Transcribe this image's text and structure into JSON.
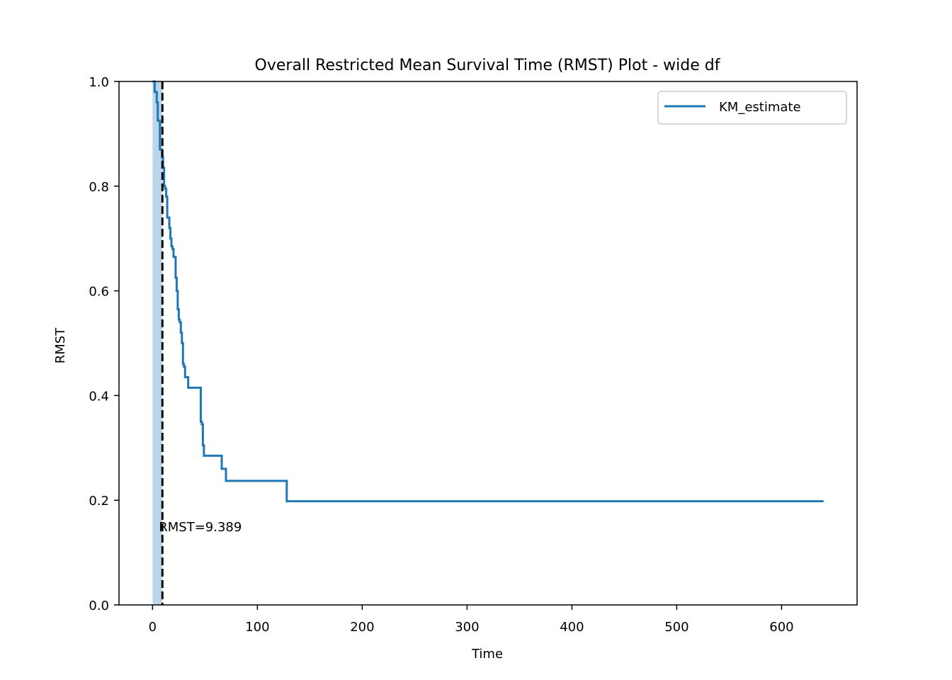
{
  "chart_data": {
    "type": "line",
    "title": "Overall Restricted Mean Survival Time (RMST) Plot - wide df",
    "xlabel": "Time",
    "ylabel": "RMST",
    "xlim": [
      -32,
      672
    ],
    "ylim": [
      0.0,
      1.0
    ],
    "x_ticks": [
      0,
      100,
      200,
      300,
      400,
      500,
      600
    ],
    "y_ticks": [
      0.0,
      0.2,
      0.4,
      0.6,
      0.8,
      1.0
    ],
    "x_tick_labels": [
      "0",
      "100",
      "200",
      "300",
      "400",
      "500",
      "600"
    ],
    "y_tick_labels": [
      "0.0",
      "0.2",
      "0.4",
      "0.6",
      "0.8",
      "1.0"
    ],
    "grid": false,
    "legend": {
      "position": "top-right",
      "entries": [
        "KM_estimate"
      ]
    },
    "series": [
      {
        "name": "KM_estimate",
        "color": "#1f77b4",
        "step": "post",
        "x": [
          0,
          2,
          4,
          5,
          7,
          9,
          10,
          11,
          12,
          13,
          14,
          16,
          17,
          18,
          19,
          20,
          22,
          23,
          24,
          25,
          26,
          27,
          28,
          29,
          30,
          31,
          32,
          34,
          46,
          47,
          48,
          49,
          65,
          66,
          69,
          70,
          127,
          128,
          640
        ],
        "y": [
          1.0,
          0.98,
          0.96,
          0.925,
          0.87,
          0.855,
          0.835,
          0.8,
          0.795,
          0.78,
          0.74,
          0.72,
          0.7,
          0.685,
          0.68,
          0.665,
          0.625,
          0.6,
          0.565,
          0.545,
          0.54,
          0.52,
          0.5,
          0.46,
          0.455,
          0.435,
          0.435,
          0.415,
          0.35,
          0.345,
          0.305,
          0.285,
          0.285,
          0.26,
          0.26,
          0.237,
          0.237,
          0.198,
          0.198
        ]
      }
    ],
    "rmst_band": {
      "x_from": 0,
      "x_to": 9.389,
      "color": "#1f77b4",
      "opacity": 0.3
    },
    "rmst_line": {
      "x": 9.389,
      "color": "#000000",
      "style": "dashed"
    },
    "annotation": {
      "text": "RMST=9.389",
      "x": 6,
      "y": 0.15
    }
  }
}
